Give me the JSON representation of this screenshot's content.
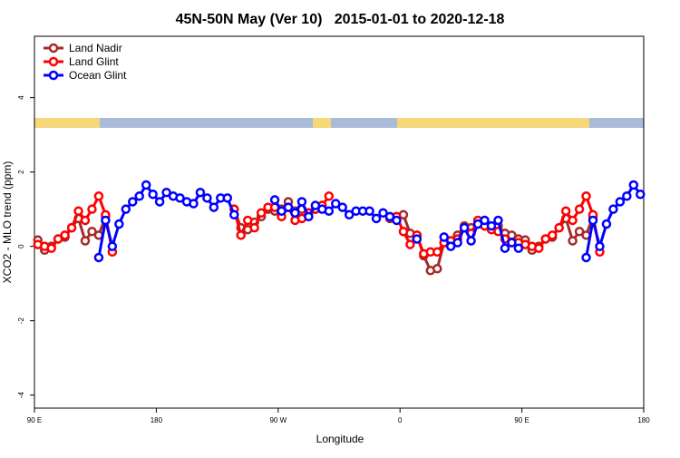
{
  "chart_data": {
    "type": "line",
    "title": "45N-50N May (Ver 10)   2015-01-01 to 2020-12-18",
    "xlabel": "Longitude",
    "ylabel": "XCO2 - MLO trend (ppm)",
    "legend": "top-left",
    "xlim": [
      90,
      540
    ],
    "ylim": [
      -4.35,
      5.65
    ],
    "xticks": [
      {
        "value": 90,
        "label": "90 E"
      },
      180,
      {
        "value": 270,
        "label": "90 W"
      },
      {
        "value": 360,
        "label": "0"
      },
      {
        "value": 450,
        "label": "90 E"
      },
      {
        "value": 540,
        "label": "180"
      }
    ],
    "yticks": [
      4,
      2,
      0,
      -2,
      -4
    ],
    "x": [
      92.5,
      97.5,
      102.5,
      107.5,
      112.5,
      117.5,
      122.5,
      127.5,
      132.5,
      137.5,
      142.5,
      147.5,
      152.5,
      157.5,
      162.5,
      167.5,
      172.5,
      177.5,
      182.5,
      187.5,
      192.5,
      197.5,
      202.5,
      207.5,
      212.5,
      217.5,
      222.5,
      227.5,
      232.5,
      237.5,
      242.5,
      247.5,
      252.5,
      257.5,
      262.5,
      267.5,
      272.5,
      277.5,
      282.5,
      287.5,
      292.5,
      297.5,
      302.5,
      307.5,
      312.5,
      317.5,
      322.5,
      327.5,
      332.5,
      337.5,
      342.5,
      347.5,
      352.5,
      357.5,
      362.5,
      367.5,
      372.5,
      377.5,
      382.5,
      387.5,
      392.5,
      397.5,
      402.5,
      407.5,
      412.5,
      417.5,
      422.5,
      427.5,
      432.5,
      437.5,
      442.5,
      447.5,
      452.5,
      457.5,
      462.5,
      467.5,
      472.5,
      477.5,
      482.5,
      487.5,
      492.5,
      497.5,
      502.5,
      507.5,
      512.5,
      517.5,
      522.5,
      527.5,
      532.5,
      537.5
    ],
    "series": [
      {
        "name": "Land Nadir",
        "color": "#a52a2a",
        "values": [
          0.17,
          -0.1,
          0,
          0.2,
          0.25,
          0.5,
          0.75,
          0.15,
          0.4,
          0.3,
          0.8,
          null,
          null,
          null,
          null,
          null,
          null,
          null,
          null,
          null,
          null,
          null,
          null,
          null,
          null,
          null,
          null,
          null,
          null,
          1.0,
          0.5,
          0.45,
          0.65,
          0.8,
          1.0,
          0.95,
          1.0,
          1.2,
          0.95,
          1.0,
          0.9,
          1.0,
          null,
          null,
          null,
          null,
          null,
          null,
          null,
          null,
          null,
          null,
          0.75,
          0.8,
          0.85,
          0.35,
          0.3,
          -0.25,
          -0.65,
          -0.6,
          0.1,
          0.15,
          0.3,
          0.55,
          0.5,
          0.65,
          0.55,
          0.5,
          0.55,
          0.35,
          0.3,
          0.2,
          0.17,
          -0.1,
          0,
          0.2,
          0.25,
          0.5,
          0.75,
          0.15,
          0.4,
          0.3,
          0.8,
          null,
          null,
          null,
          null,
          null,
          null,
          null
        ]
      },
      {
        "name": "Land Glint",
        "color": "#ff0000",
        "values": [
          0.05,
          0,
          -0.05,
          0.2,
          0.3,
          0.5,
          0.95,
          0.7,
          1.0,
          1.35,
          0.85,
          -0.15,
          null,
          null,
          null,
          null,
          null,
          null,
          null,
          null,
          null,
          null,
          null,
          null,
          null,
          null,
          null,
          null,
          null,
          1.0,
          0.3,
          0.7,
          0.5,
          0.9,
          1.05,
          1.05,
          0.8,
          1.05,
          0.7,
          0.75,
          0.9,
          1.0,
          1.1,
          1.35,
          null,
          null,
          null,
          null,
          null,
          null,
          null,
          null,
          null,
          0.8,
          0.4,
          0.05,
          0.3,
          -0.2,
          -0.15,
          -0.15,
          0.1,
          0.15,
          0.2,
          0.5,
          0.35,
          0.7,
          0.55,
          0.45,
          0.4,
          0.2,
          0.1,
          0.1,
          0.05,
          0,
          -0.05,
          0.2,
          0.3,
          0.5,
          0.95,
          0.7,
          1.0,
          1.35,
          0.85,
          -0.15,
          null,
          null,
          null,
          null,
          null,
          null
        ]
      },
      {
        "name": "Ocean Glint",
        "color": "#0000ff",
        "values": [
          null,
          null,
          null,
          null,
          null,
          null,
          null,
          null,
          null,
          -0.3,
          0.7,
          0,
          0.6,
          1.0,
          1.2,
          1.35,
          1.65,
          1.4,
          1.2,
          1.45,
          1.35,
          1.3,
          1.2,
          1.15,
          1.45,
          1.3,
          1.05,
          1.3,
          1.3,
          0.85,
          null,
          null,
          null,
          null,
          null,
          1.25,
          0.95,
          1.05,
          0.9,
          1.2,
          0.8,
          1.1,
          1.0,
          0.95,
          1.15,
          1.05,
          0.85,
          0.95,
          0.95,
          0.95,
          0.75,
          0.9,
          0.8,
          0.7,
          null,
          null,
          0.2,
          null,
          null,
          null,
          0.25,
          0,
          0.1,
          0.5,
          0.15,
          0.6,
          0.7,
          0.55,
          0.7,
          -0.05,
          0.1,
          -0.05,
          null,
          null,
          null,
          null,
          null,
          null,
          null,
          null,
          null,
          -0.3,
          0.7,
          0,
          0.6,
          1.0,
          1.2,
          1.35,
          1.65,
          1.4
        ]
      }
    ]
  }
}
